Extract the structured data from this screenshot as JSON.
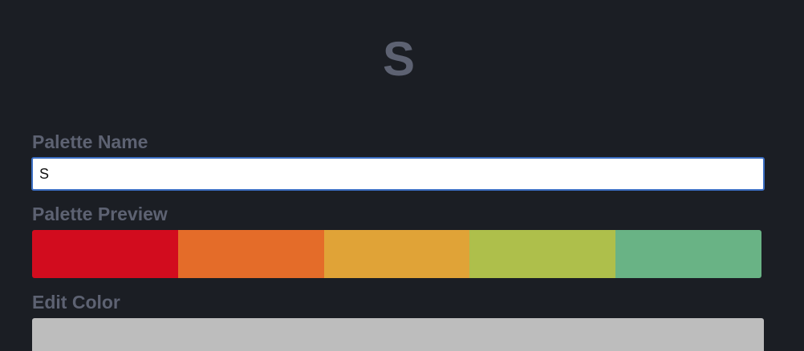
{
  "header": {
    "title": "S"
  },
  "form": {
    "name_label": "Palette Name",
    "name_value": "S",
    "preview_label": "Palette Preview",
    "edit_label": "Edit Color"
  },
  "palette": {
    "colors": [
      "#d20c1e",
      "#e46c29",
      "#e0a337",
      "#aebf4b",
      "#69b385"
    ]
  },
  "edit_color": {
    "current_color": "#bdbdbd"
  }
}
